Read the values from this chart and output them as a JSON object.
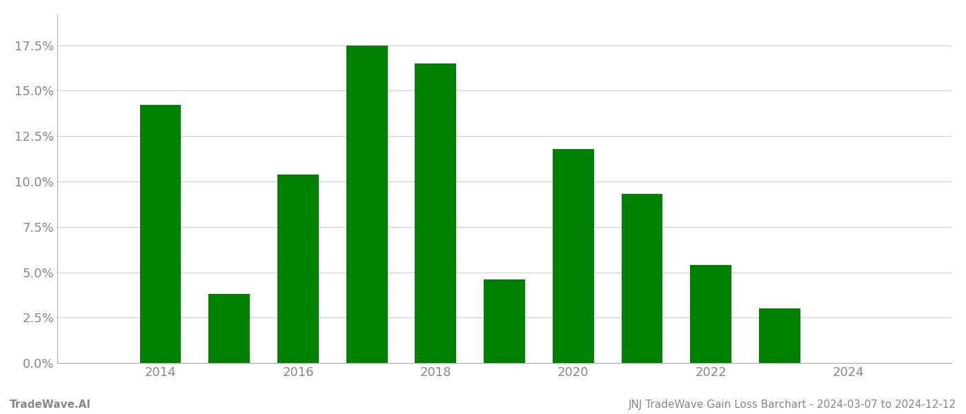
{
  "years": [
    2014,
    2015,
    2016,
    2017,
    2018,
    2019,
    2020,
    2021,
    2022,
    2023,
    2024
  ],
  "values": [
    0.142,
    0.038,
    0.104,
    0.175,
    0.165,
    0.046,
    0.118,
    0.093,
    0.054,
    0.03,
    0.0
  ],
  "bar_color": "#008000",
  "background_color": "#ffffff",
  "grid_color": "#cccccc",
  "tick_color": "#888888",
  "title_text": "JNJ TradeWave Gain Loss Barchart - 2024-03-07 to 2024-12-12",
  "watermark_text": "TradeWave.AI",
  "ylim": [
    0,
    0.192
  ],
  "yticks": [
    0.0,
    0.025,
    0.05,
    0.075,
    0.1,
    0.125,
    0.15,
    0.175
  ],
  "ytick_labels": [
    "0.0%",
    "2.5%",
    "5.0%",
    "7.5%",
    "10.0%",
    "12.5%",
    "15.0%",
    "17.5%"
  ],
  "xticks": [
    2014,
    2016,
    2018,
    2020,
    2022,
    2024
  ],
  "xtick_labels": [
    "2014",
    "2016",
    "2018",
    "2020",
    "2022",
    "2024"
  ],
  "bar_width": 0.6,
  "xlim": [
    2012.5,
    2025.5
  ],
  "figsize": [
    14.0,
    6.0
  ],
  "dpi": 100,
  "footer_fontsize": 11,
  "tick_fontsize": 13
}
